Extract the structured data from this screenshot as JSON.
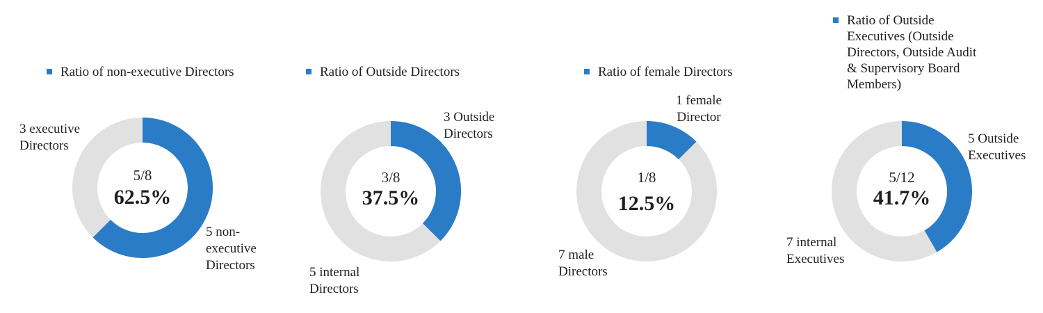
{
  "colors": {
    "accent": "#2a7cc7",
    "remainder": "#e1e1e1"
  },
  "chart_data": [
    {
      "type": "pie",
      "legend": "Ratio of non-executive Directors",
      "values": [
        5,
        3
      ],
      "fraction": "5/8",
      "percent": "62.5%",
      "highlight_label": "5 non-executive Directors",
      "highlight_lines": [
        "5 non-",
        "executive",
        "Directors"
      ],
      "other_label": "3 executive Directors",
      "other_lines": [
        "3 executive",
        "Directors"
      ]
    },
    {
      "type": "pie",
      "legend": "Ratio of Outside Directors",
      "values": [
        3,
        5
      ],
      "fraction": "3/8",
      "percent": "37.5%",
      "highlight_label": "3 Outside Directors",
      "highlight_lines": [
        "3 Outside",
        "Directors"
      ],
      "other_label": "5 internal Directors",
      "other_lines": [
        "5 internal",
        "Directors"
      ]
    },
    {
      "type": "pie",
      "legend": "Ratio of female Directors",
      "values": [
        1,
        7
      ],
      "fraction": "1/8",
      "percent": "12.5%",
      "highlight_label": "1 female Director",
      "highlight_lines": [
        "1 female",
        "Director"
      ],
      "other_label": "7 male Directors",
      "other_lines": [
        "7 male",
        "Directors"
      ]
    },
    {
      "type": "pie",
      "legend": "Ratio of Outside Executives (Outside Directors, Outside Audit & Supervisory Board Members)",
      "legend_lines": [
        "Ratio of Outside",
        "Executives (Outside",
        "Directors, Outside Audit",
        "& Supervisory Board",
        "Members)"
      ],
      "values": [
        5,
        7
      ],
      "fraction": "5/12",
      "percent": "41.7%",
      "highlight_label": "5 Outside Executives",
      "highlight_lines": [
        "5 Outside",
        "Executives"
      ],
      "other_label": "7 internal Executives",
      "other_lines": [
        "7 internal",
        "Executives"
      ]
    }
  ]
}
